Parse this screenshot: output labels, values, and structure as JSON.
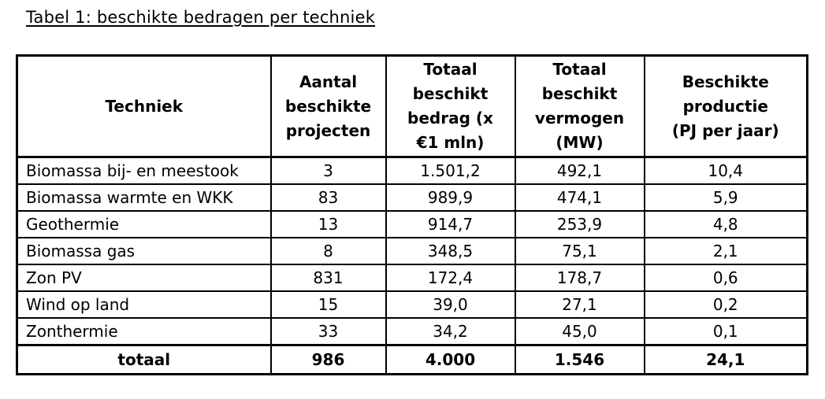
{
  "caption": "Tabel 1: beschikte bedragen per techniek",
  "table": {
    "headers": [
      [
        "Techniek"
      ],
      [
        "Aantal",
        "beschikte",
        "projecten"
      ],
      [
        "Totaal",
        "beschikt",
        "bedrag (x",
        "€1 mln)"
      ],
      [
        "Totaal",
        "beschikt",
        "vermogen",
        "(MW)"
      ],
      [
        "Beschikte",
        "productie",
        "(PJ per jaar)"
      ]
    ],
    "rows": [
      [
        "Biomassa bij- en meestook",
        "3",
        "1.501,2",
        "492,1",
        "10,4"
      ],
      [
        "Biomassa warmte en WKK",
        "83",
        "989,9",
        "474,1",
        "5,9"
      ],
      [
        "Geothermie",
        "13",
        "914,7",
        "253,9",
        "4,8"
      ],
      [
        "Biomassa gas",
        "8",
        "348,5",
        "75,1",
        "2,1"
      ],
      [
        "Zon PV",
        "831",
        "172,4",
        "178,7",
        "0,6"
      ],
      [
        "Wind op land",
        "15",
        "39,0",
        "27,1",
        "0,2"
      ],
      [
        "Zonthermie",
        "33",
        "34,2",
        "45,0",
        "0,1"
      ]
    ],
    "total": [
      "totaal",
      "986",
      "4.000",
      "1.546",
      "24,1"
    ]
  }
}
